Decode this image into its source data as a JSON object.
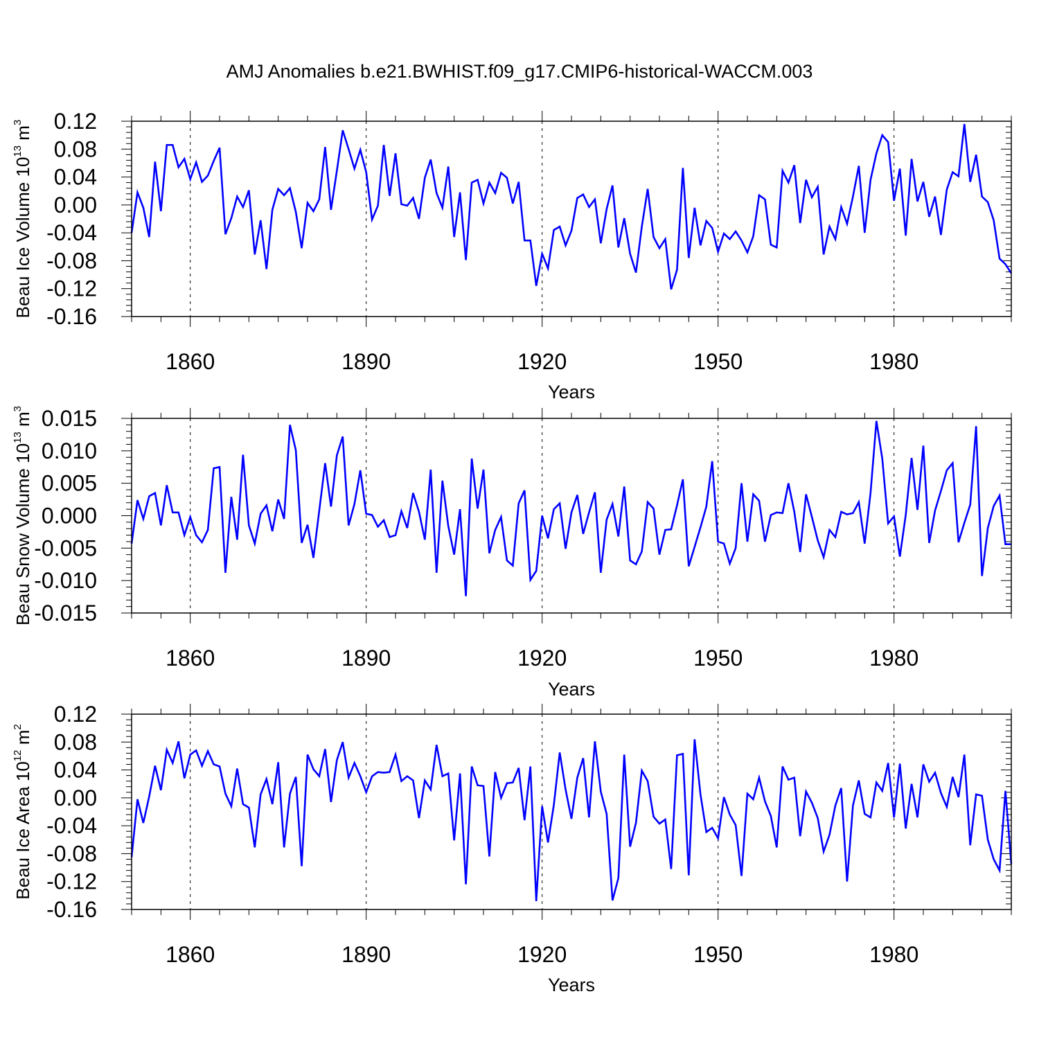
{
  "title": "AMJ Anomalies b.e21.BWHIST.f09_g17.CMIP6-historical-WACCM.003",
  "colors": {
    "line": "#0000ff",
    "axes": "#000000",
    "grid": "#000000"
  },
  "chart_data": [
    {
      "type": "line",
      "ylabel": {
        "main": "Beau Ice Volume 10",
        "exponent": "13",
        "unit": "m",
        "unit_exponent": "3"
      },
      "xlabel": "Years",
      "xlim": [
        1850,
        2000
      ],
      "ylim": [
        -0.16,
        0.12
      ],
      "x_ticks": [
        1860,
        1890,
        1920,
        1950,
        1980
      ],
      "y_ticks": [
        "-0.16",
        "-0.12",
        "-0.08",
        "-0.04",
        "0.00",
        "0.04",
        "0.08",
        "0.12"
      ],
      "y_tick_values": [
        -0.16,
        -0.12,
        -0.08,
        -0.04,
        0.0,
        0.04,
        0.08,
        0.12
      ],
      "x_start": 1850,
      "values": [
        -0.04,
        0.018,
        -0.004,
        -0.046,
        0.062,
        -0.009,
        0.086,
        0.086,
        0.054,
        0.066,
        0.037,
        0.061,
        0.033,
        0.042,
        0.063,
        0.082,
        -0.042,
        -0.019,
        0.012,
        -0.003,
        0.021,
        -0.071,
        -0.022,
        -0.092,
        -0.007,
        0.023,
        0.014,
        0.024,
        -0.01,
        -0.062,
        0.003,
        -0.009,
        0.008,
        0.083,
        -0.007,
        0.049,
        0.107,
        0.08,
        0.052,
        0.079,
        0.047,
        -0.021,
        -0.001,
        0.086,
        0.013,
        0.074,
        0.001,
        -0.001,
        0.01,
        -0.02,
        0.039,
        0.065,
        0.017,
        -0.004,
        0.055,
        -0.046,
        0.018,
        -0.079,
        0.032,
        0.036,
        0.002,
        0.032,
        0.017,
        0.046,
        0.039,
        0.002,
        0.033,
        -0.051,
        -0.051,
        -0.116,
        -0.07,
        -0.091,
        -0.036,
        -0.031,
        -0.058,
        -0.037,
        0.01,
        0.015,
        -0.003,
        0.008,
        -0.055,
        -0.006,
        0.028,
        -0.061,
        -0.019,
        -0.07,
        -0.097,
        -0.031,
        0.023,
        -0.046,
        -0.062,
        -0.049,
        -0.121,
        -0.093,
        0.053,
        -0.076,
        -0.004,
        -0.058,
        -0.023,
        -0.033,
        -0.067,
        -0.041,
        -0.049,
        -0.038,
        -0.051,
        -0.068,
        -0.045,
        0.014,
        0.008,
        -0.057,
        -0.061,
        0.049,
        0.032,
        0.057,
        -0.026,
        0.036,
        0.011,
        0.026,
        -0.071,
        -0.031,
        -0.049,
        -0.003,
        -0.027,
        0.012,
        0.056,
        -0.04,
        0.036,
        0.074,
        0.1,
        0.09,
        0.006,
        0.052,
        -0.044,
        0.066,
        0.005,
        0.033,
        -0.017,
        0.012,
        -0.043,
        0.022,
        0.047,
        0.041,
        0.116,
        0.033,
        0.072,
        0.012,
        0.004,
        -0.022,
        -0.077,
        -0.085,
        -0.098
      ]
    },
    {
      "type": "line",
      "ylabel": {
        "main": "Beau Snow Volume 10",
        "exponent": "13",
        "unit": "m",
        "unit_exponent": "3"
      },
      "xlabel": "Years",
      "xlim": [
        1850,
        2000
      ],
      "ylim": [
        -0.015,
        0.015
      ],
      "x_ticks": [
        1860,
        1890,
        1920,
        1950,
        1980
      ],
      "y_ticks": [
        "-0.015",
        "-0.010",
        "-0.005",
        "0.000",
        "0.005",
        "0.010",
        "0.015"
      ],
      "y_tick_values": [
        -0.015,
        -0.01,
        -0.005,
        0.0,
        0.005,
        0.01,
        0.015
      ],
      "x_start": 1850,
      "values": [
        -0.0043,
        0.0024,
        -0.0005,
        0.003,
        0.0035,
        -0.0015,
        0.0047,
        0.0005,
        0.0005,
        -0.003,
        -0.0002,
        -0.003,
        -0.0041,
        -0.0022,
        0.0073,
        0.0075,
        -0.0088,
        0.0029,
        -0.0037,
        0.0094,
        -0.0015,
        -0.0043,
        0.0003,
        0.0016,
        -0.0024,
        0.0025,
        -0.0005,
        0.014,
        0.0101,
        -0.0042,
        -0.0014,
        -0.0065,
        0.0008,
        0.0081,
        0.0014,
        0.0093,
        0.0122,
        -0.0015,
        0.0018,
        0.007,
        0.0003,
        0.0001,
        -0.0017,
        -0.0007,
        -0.0033,
        -0.003,
        0.0007,
        -0.0019,
        0.0035,
        0.0006,
        -0.0037,
        0.0071,
        -0.0088,
        0.0054,
        -0.0016,
        -0.006,
        0.001,
        -0.0124,
        0.0088,
        0.0011,
        0.0071,
        -0.0058,
        -0.0022,
        -0.0002,
        -0.0069,
        -0.0077,
        0.0019,
        0.0039,
        -0.0099,
        -0.0085,
        0.0,
        -0.0035,
        0.001,
        0.0019,
        -0.0051,
        0.0005,
        0.0032,
        -0.0028,
        0.0005,
        0.0036,
        -0.0088,
        -0.0006,
        0.0018,
        -0.0032,
        0.0045,
        -0.0069,
        -0.0075,
        -0.0055,
        0.0021,
        0.0011,
        -0.006,
        -0.0022,
        -0.0021,
        0.0016,
        0.0056,
        -0.0078,
        -0.0048,
        -0.0018,
        0.0014,
        0.0084,
        -0.004,
        -0.0043,
        -0.0074,
        -0.005,
        0.005,
        -0.004,
        0.0033,
        0.0023,
        -0.004,
        0.0001,
        0.0005,
        0.0004,
        0.005,
        0.0006,
        -0.0056,
        0.0033,
        -0.0002,
        -0.0038,
        -0.0064,
        -0.0022,
        -0.0033,
        0.0006,
        0.0002,
        0.0004,
        0.0021,
        -0.0043,
        0.0035,
        0.0146,
        0.0088,
        -0.0012,
        -0.0001,
        -0.0063,
        0.0001,
        0.0089,
        0.0009,
        0.0108,
        -0.0042,
        0.0008,
        0.0038,
        0.007,
        0.0081,
        -0.0041,
        -0.0011,
        0.0017,
        0.0138,
        -0.0093,
        -0.0019,
        0.0015,
        0.0031,
        -0.0044,
        -0.0044
      ]
    },
    {
      "type": "line",
      "ylabel": {
        "main": "Beau Ice Area 10",
        "exponent": "12",
        "unit": "m",
        "unit_exponent": "2"
      },
      "xlabel": "Years",
      "xlim": [
        1850,
        2000
      ],
      "ylim": [
        -0.16,
        0.12
      ],
      "x_ticks": [
        1860,
        1890,
        1920,
        1950,
        1980
      ],
      "y_ticks": [
        "-0.16",
        "-0.12",
        "-0.08",
        "-0.04",
        "0.00",
        "0.04",
        "0.08",
        "0.12"
      ],
      "y_tick_values": [
        -0.16,
        -0.12,
        -0.08,
        -0.04,
        0.0,
        0.04,
        0.08,
        0.12
      ],
      "x_start": 1850,
      "values": [
        -0.085,
        -0.002,
        -0.036,
        0.002,
        0.046,
        0.011,
        0.069,
        0.05,
        0.081,
        0.028,
        0.062,
        0.068,
        0.046,
        0.067,
        0.048,
        0.045,
        0.006,
        -0.012,
        0.042,
        -0.009,
        -0.014,
        -0.071,
        0.005,
        0.027,
        -0.009,
        0.051,
        -0.071,
        0.006,
        0.03,
        -0.098,
        0.062,
        0.041,
        0.031,
        0.07,
        -0.006,
        0.054,
        0.08,
        0.029,
        0.05,
        0.031,
        0.008,
        0.031,
        0.037,
        0.036,
        0.037,
        0.062,
        0.024,
        0.031,
        0.025,
        -0.029,
        0.025,
        0.012,
        0.076,
        0.031,
        0.035,
        -0.061,
        0.035,
        -0.124,
        0.045,
        0.018,
        0.017,
        -0.084,
        0.037,
        0.0,
        0.021,
        0.022,
        0.043,
        -0.032,
        0.045,
        -0.148,
        -0.012,
        -0.064,
        -0.01,
        0.065,
        0.012,
        -0.03,
        0.029,
        0.057,
        -0.028,
        0.081,
        0.009,
        -0.023,
        -0.147,
        -0.115,
        0.062,
        -0.07,
        -0.036,
        0.039,
        0.024,
        -0.027,
        -0.037,
        -0.031,
        -0.102,
        0.061,
        0.063,
        -0.111,
        0.084,
        0.005,
        -0.049,
        -0.043,
        -0.058,
        0.001,
        -0.024,
        -0.039,
        -0.112,
        0.006,
        -0.002,
        0.029,
        -0.005,
        -0.026,
        -0.071,
        0.045,
        0.026,
        0.029,
        -0.055,
        0.009,
        -0.007,
        -0.029,
        -0.077,
        -0.053,
        -0.011,
        0.014,
        -0.12,
        -0.011,
        0.025,
        -0.023,
        -0.028,
        0.022,
        0.01,
        0.05,
        -0.028,
        0.049,
        -0.044,
        0.02,
        -0.028,
        0.048,
        0.023,
        0.036,
        0.007,
        -0.013,
        0.03,
        0.001,
        0.062,
        -0.068,
        0.005,
        0.003,
        -0.06,
        -0.088,
        -0.104,
        0.01,
        -0.095
      ]
    }
  ]
}
